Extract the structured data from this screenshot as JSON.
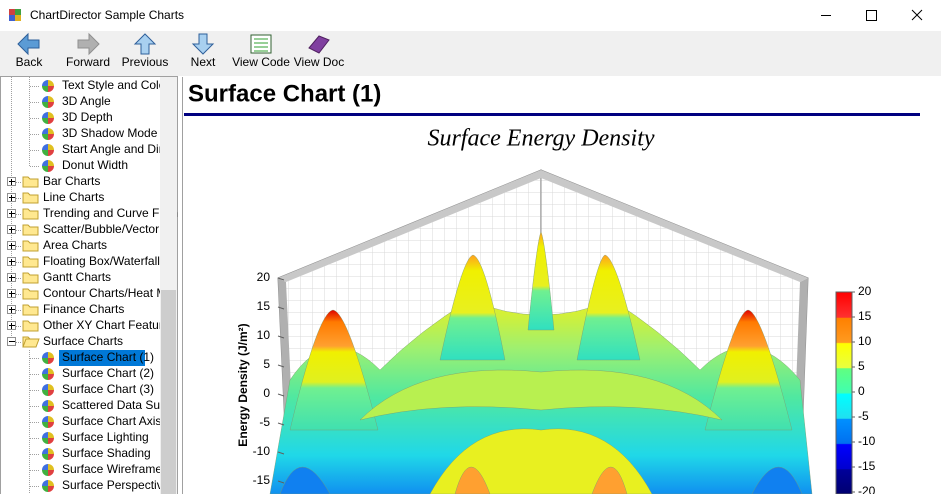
{
  "window": {
    "title": "ChartDirector Sample Charts"
  },
  "toolbar": {
    "buttons": [
      {
        "label": "Back",
        "enabled": true
      },
      {
        "label": "Forward",
        "enabled": false
      },
      {
        "label": "Previous",
        "enabled": true
      },
      {
        "label": "Next",
        "enabled": true
      },
      {
        "label": "View Code",
        "enabled": true
      },
      {
        "label": "View Doc",
        "enabled": true
      }
    ]
  },
  "tree": {
    "items": [
      {
        "label": "Text Style and Colors",
        "level": 2
      },
      {
        "label": "3D Angle",
        "level": 2
      },
      {
        "label": "3D Depth",
        "level": 2
      },
      {
        "label": "3D Shadow Mode",
        "level": 2
      },
      {
        "label": "Start Angle and Direc",
        "level": 2
      },
      {
        "label": "Donut Width",
        "level": 2
      },
      {
        "label": "Bar Charts",
        "level": 1,
        "expanded": false
      },
      {
        "label": "Line Charts",
        "level": 1,
        "expanded": false
      },
      {
        "label": "Trending and Curve Fittin",
        "level": 1,
        "expanded": false
      },
      {
        "label": "Scatter/Bubble/Vector C",
        "level": 1,
        "expanded": false
      },
      {
        "label": "Area Charts",
        "level": 1,
        "expanded": false
      },
      {
        "label": "Floating Box/Waterfall Cl",
        "level": 1,
        "expanded": false
      },
      {
        "label": "Gantt Charts",
        "level": 1,
        "expanded": false
      },
      {
        "label": "Contour Charts/Heat Ma",
        "level": 1,
        "expanded": false
      },
      {
        "label": "Finance Charts",
        "level": 1,
        "expanded": false
      },
      {
        "label": "Other XY Chart Features",
        "level": 1,
        "expanded": false
      },
      {
        "label": "Surface Charts",
        "level": 1,
        "expanded": true
      },
      {
        "label": "Surface Chart (1)",
        "level": 2,
        "selected": true
      },
      {
        "label": "Surface Chart (2)",
        "level": 2
      },
      {
        "label": "Surface Chart (3)",
        "level": 2
      },
      {
        "label": "Scattered Data Surfa",
        "level": 2
      },
      {
        "label": "Surface Chart Axis T",
        "level": 2
      },
      {
        "label": "Surface Lighting",
        "level": 2
      },
      {
        "label": "Surface Shading",
        "level": 2
      },
      {
        "label": "Surface Wireframe",
        "level": 2
      },
      {
        "label": "Surface Perspective",
        "level": 2
      }
    ]
  },
  "content": {
    "heading": "Surface Chart (1)",
    "chart": {
      "title": "Surface Energy Density",
      "z_axis_title": "Energy Density (J/m²)",
      "z_ticks": [
        20,
        15,
        10,
        5,
        0,
        -5,
        -10,
        -15
      ],
      "legend_ticks": [
        20,
        15,
        10,
        5,
        0,
        -5,
        -10,
        -15,
        -20
      ]
    }
  }
}
